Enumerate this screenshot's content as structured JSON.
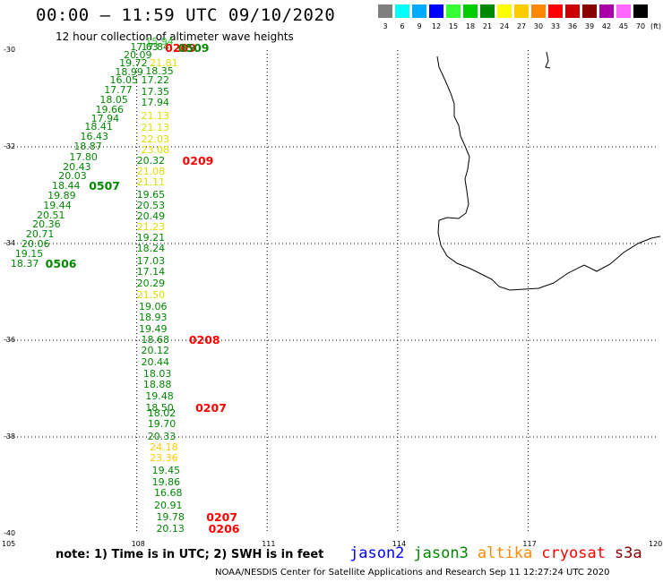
{
  "header": {
    "title": "00:00 – 11:59 UTC 09/10/2020",
    "subtitle": "12 hour collection of altimeter wave heights"
  },
  "legend": {
    "unit": "(ft)",
    "bins": [
      {
        "label": "3",
        "color": "#7f7f7f"
      },
      {
        "label": "6",
        "color": "#00ffff"
      },
      {
        "label": "9",
        "color": "#00aaff"
      },
      {
        "label": "12",
        "color": "#0000ff"
      },
      {
        "label": "15",
        "color": "#33ff33"
      },
      {
        "label": "18",
        "color": "#00cc00"
      },
      {
        "label": "21",
        "color": "#008800"
      },
      {
        "label": "24",
        "color": "#ffff00"
      },
      {
        "label": "27",
        "color": "#ffcc00"
      },
      {
        "label": "30",
        "color": "#ff8800"
      },
      {
        "label": "33",
        "color": "#ff0000"
      },
      {
        "label": "36",
        "color": "#cc0000"
      },
      {
        "label": "39",
        "color": "#880000"
      },
      {
        "label": "42",
        "color": "#aa00aa"
      },
      {
        "label": "45",
        "color": "#ff66ff"
      },
      {
        "label": "70",
        "color": "#000000"
      }
    ]
  },
  "axes": {
    "lat_labels": [
      "-30",
      "-32",
      "-34",
      "-36",
      "-38",
      "-40"
    ],
    "lon_labels": [
      "105",
      "108",
      "111",
      "114",
      "117",
      "120"
    ]
  },
  "measurements": [
    {
      "value": "15.94",
      "lat": -29.82,
      "lon": 108.2,
      "color": "#33cc33"
    },
    {
      "value": "17.84",
      "lat": -29.93,
      "lon": 108.1,
      "color": "#008800"
    },
    {
      "value": "17.63",
      "lat": -29.93,
      "lon": 107.85,
      "color": "#008800"
    },
    {
      "value": "20.09",
      "lat": -30.1,
      "lon": 107.7,
      "color": "#008800"
    },
    {
      "value": "19.72",
      "lat": -30.25,
      "lon": 107.6,
      "color": "#008800"
    },
    {
      "value": "21.81",
      "lat": -30.25,
      "lon": 108.3,
      "color": "#dddd00"
    },
    {
      "value": "18.35",
      "lat": -30.42,
      "lon": 108.2,
      "color": "#008800"
    },
    {
      "value": "18.99",
      "lat": -30.45,
      "lon": 107.5,
      "color": "#008800"
    },
    {
      "value": "16.05",
      "lat": -30.62,
      "lon": 107.38,
      "color": "#008800"
    },
    {
      "value": "17.22",
      "lat": -30.62,
      "lon": 108.1,
      "color": "#008800"
    },
    {
      "value": "17.77",
      "lat": -30.82,
      "lon": 107.25,
      "color": "#008800"
    },
    {
      "value": "17.35",
      "lat": -30.85,
      "lon": 108.1,
      "color": "#008800"
    },
    {
      "value": "18.05",
      "lat": -31.02,
      "lon": 107.15,
      "color": "#008800"
    },
    {
      "value": "17.94",
      "lat": -31.08,
      "lon": 108.1,
      "color": "#008800"
    },
    {
      "value": "19.66",
      "lat": -31.22,
      "lon": 107.05,
      "color": "#008800"
    },
    {
      "value": "17.94",
      "lat": -31.4,
      "lon": 106.95,
      "color": "#008800"
    },
    {
      "value": "21.13",
      "lat": -31.35,
      "lon": 108.1,
      "color": "#dddd00"
    },
    {
      "value": "18.41",
      "lat": -31.58,
      "lon": 106.8,
      "color": "#008800"
    },
    {
      "value": "21.13",
      "lat": -31.6,
      "lon": 108.1,
      "color": "#dddd00"
    },
    {
      "value": "16.43",
      "lat": -31.78,
      "lon": 106.7,
      "color": "#008800"
    },
    {
      "value": "22.03",
      "lat": -31.83,
      "lon": 108.1,
      "color": "#dddd00"
    },
    {
      "value": "18.87",
      "lat": -31.98,
      "lon": 106.55,
      "color": "#008800"
    },
    {
      "value": "23.08",
      "lat": -32.05,
      "lon": 108.1,
      "color": "#dddd00"
    },
    {
      "value": "17.80",
      "lat": -32.2,
      "lon": 106.45,
      "color": "#008800"
    },
    {
      "value": "20.32",
      "lat": -32.28,
      "lon": 108.0,
      "color": "#008800"
    },
    {
      "value": "20.43",
      "lat": -32.4,
      "lon": 106.3,
      "color": "#008800"
    },
    {
      "value": "21.08",
      "lat": -32.5,
      "lon": 108.0,
      "color": "#dddd00"
    },
    {
      "value": "20.03",
      "lat": -32.6,
      "lon": 106.2,
      "color": "#008800"
    },
    {
      "value": "21.11",
      "lat": -32.72,
      "lon": 108.0,
      "color": "#dddd00"
    },
    {
      "value": "18.44",
      "lat": -32.8,
      "lon": 106.05,
      "color": "#008800"
    },
    {
      "value": "19.89",
      "lat": -33.0,
      "lon": 105.95,
      "color": "#008800"
    },
    {
      "value": "19.65",
      "lat": -32.98,
      "lon": 108.0,
      "color": "#008800"
    },
    {
      "value": "19.44",
      "lat": -33.2,
      "lon": 105.85,
      "color": "#008800"
    },
    {
      "value": "20.53",
      "lat": -33.2,
      "lon": 108.0,
      "color": "#008800"
    },
    {
      "value": "20.51",
      "lat": -33.4,
      "lon": 105.7,
      "color": "#008800"
    },
    {
      "value": "20.49",
      "lat": -33.42,
      "lon": 108.0,
      "color": "#008800"
    },
    {
      "value": "20.36",
      "lat": -33.6,
      "lon": 105.6,
      "color": "#008800"
    },
    {
      "value": "21.23",
      "lat": -33.65,
      "lon": 108.0,
      "color": "#dddd00"
    },
    {
      "value": "20.71",
      "lat": -33.8,
      "lon": 105.45,
      "color": "#008800"
    },
    {
      "value": "19.21",
      "lat": -33.87,
      "lon": 108.0,
      "color": "#008800"
    },
    {
      "value": "20.06",
      "lat": -34.0,
      "lon": 105.35,
      "color": "#008800"
    },
    {
      "value": "18.24",
      "lat": -34.1,
      "lon": 108.0,
      "color": "#008800"
    },
    {
      "value": "19.15",
      "lat": -34.2,
      "lon": 105.2,
      "color": "#008800"
    },
    {
      "value": "18.37",
      "lat": -34.4,
      "lon": 105.1,
      "color": "#008800"
    },
    {
      "value": "17.03",
      "lat": -34.35,
      "lon": 108.0,
      "color": "#008800"
    },
    {
      "value": "17.14",
      "lat": -34.58,
      "lon": 108.0,
      "color": "#008800"
    },
    {
      "value": "20.29",
      "lat": -34.82,
      "lon": 108.0,
      "color": "#008800"
    },
    {
      "value": "21.50",
      "lat": -35.05,
      "lon": 108.0,
      "color": "#dddd00"
    },
    {
      "value": "19.06",
      "lat": -35.3,
      "lon": 108.05,
      "color": "#008800"
    },
    {
      "value": "18.93",
      "lat": -35.52,
      "lon": 108.05,
      "color": "#008800"
    },
    {
      "value": "19.49",
      "lat": -35.75,
      "lon": 108.05,
      "color": "#008800"
    },
    {
      "value": "18.68",
      "lat": -35.98,
      "lon": 108.1,
      "color": "#008800"
    },
    {
      "value": "20.12",
      "lat": -36.2,
      "lon": 108.1,
      "color": "#008800"
    },
    {
      "value": "20.44",
      "lat": -36.45,
      "lon": 108.1,
      "color": "#008800"
    },
    {
      "value": "18.03",
      "lat": -36.68,
      "lon": 108.15,
      "color": "#008800"
    },
    {
      "value": "18.88",
      "lat": -36.9,
      "lon": 108.15,
      "color": "#008800"
    },
    {
      "value": "19.48",
      "lat": -37.15,
      "lon": 108.2,
      "color": "#008800"
    },
    {
      "value": "18.50",
      "lat": -37.38,
      "lon": 108.2,
      "color": "#008800"
    },
    {
      "value": "18.02",
      "lat": -37.5,
      "lon": 108.25,
      "color": "#008800"
    },
    {
      "value": "19.70",
      "lat": -37.72,
      "lon": 108.25,
      "color": "#008800"
    },
    {
      "value": "20.33",
      "lat": -37.98,
      "lon": 108.25,
      "color": "#008800"
    },
    {
      "value": "24.18",
      "lat": -38.2,
      "lon": 108.3,
      "color": "#ffcc00"
    },
    {
      "value": "23.36",
      "lat": -38.42,
      "lon": 108.3,
      "color": "#ffcc00"
    },
    {
      "value": "19.45",
      "lat": -38.68,
      "lon": 108.35,
      "color": "#008800"
    },
    {
      "value": "19.86",
      "lat": -38.92,
      "lon": 108.35,
      "color": "#008800"
    },
    {
      "value": "16.68",
      "lat": -39.15,
      "lon": 108.4,
      "color": "#008800"
    },
    {
      "value": "20.91",
      "lat": -39.4,
      "lon": 108.4,
      "color": "#008800"
    },
    {
      "value": "19.78",
      "lat": -39.65,
      "lon": 108.45,
      "color": "#008800"
    },
    {
      "value": "20.13",
      "lat": -39.88,
      "lon": 108.45,
      "color": "#008800"
    }
  ],
  "passes": [
    {
      "label": "0209",
      "lat": -29.95,
      "lon": 108.65,
      "color": "#ff0000"
    },
    {
      "label": "0509",
      "lat": -29.95,
      "lon": 108.95,
      "color": "#008800"
    },
    {
      "label": "0209",
      "lat": -32.28,
      "lon": 109.05,
      "color": "#ff0000"
    },
    {
      "label": "0507",
      "lat": -32.8,
      "lon": 106.9,
      "color": "#008800"
    },
    {
      "label": "0506",
      "lat": -34.4,
      "lon": 105.9,
      "color": "#008800"
    },
    {
      "label": "0208",
      "lat": -35.98,
      "lon": 109.2,
      "color": "#ff0000"
    },
    {
      "label": "0207",
      "lat": -37.38,
      "lon": 109.35,
      "color": "#ff0000"
    },
    {
      "label": "0207",
      "lat": -39.65,
      "lon": 109.6,
      "color": "#ff0000"
    },
    {
      "label": "0206",
      "lat": -39.88,
      "lon": 109.65,
      "color": "#ff0000"
    }
  ],
  "footer": {
    "note": "note:  1) Time is in UTC;  2) SWH is in feet",
    "satellites": [
      {
        "name": "jason2",
        "color": "#0000ff"
      },
      {
        "name": "jason3",
        "color": "#008800"
      },
      {
        "name": "altika",
        "color": "#ff8800"
      },
      {
        "name": "cryosat",
        "color": "#ff0000"
      },
      {
        "name": "s3a",
        "color": "#880000"
      }
    ],
    "credit": "NOAA/NESDIS Center for Satellite Applications and Research    Sep 11 12:27:24 UTC 2020"
  }
}
